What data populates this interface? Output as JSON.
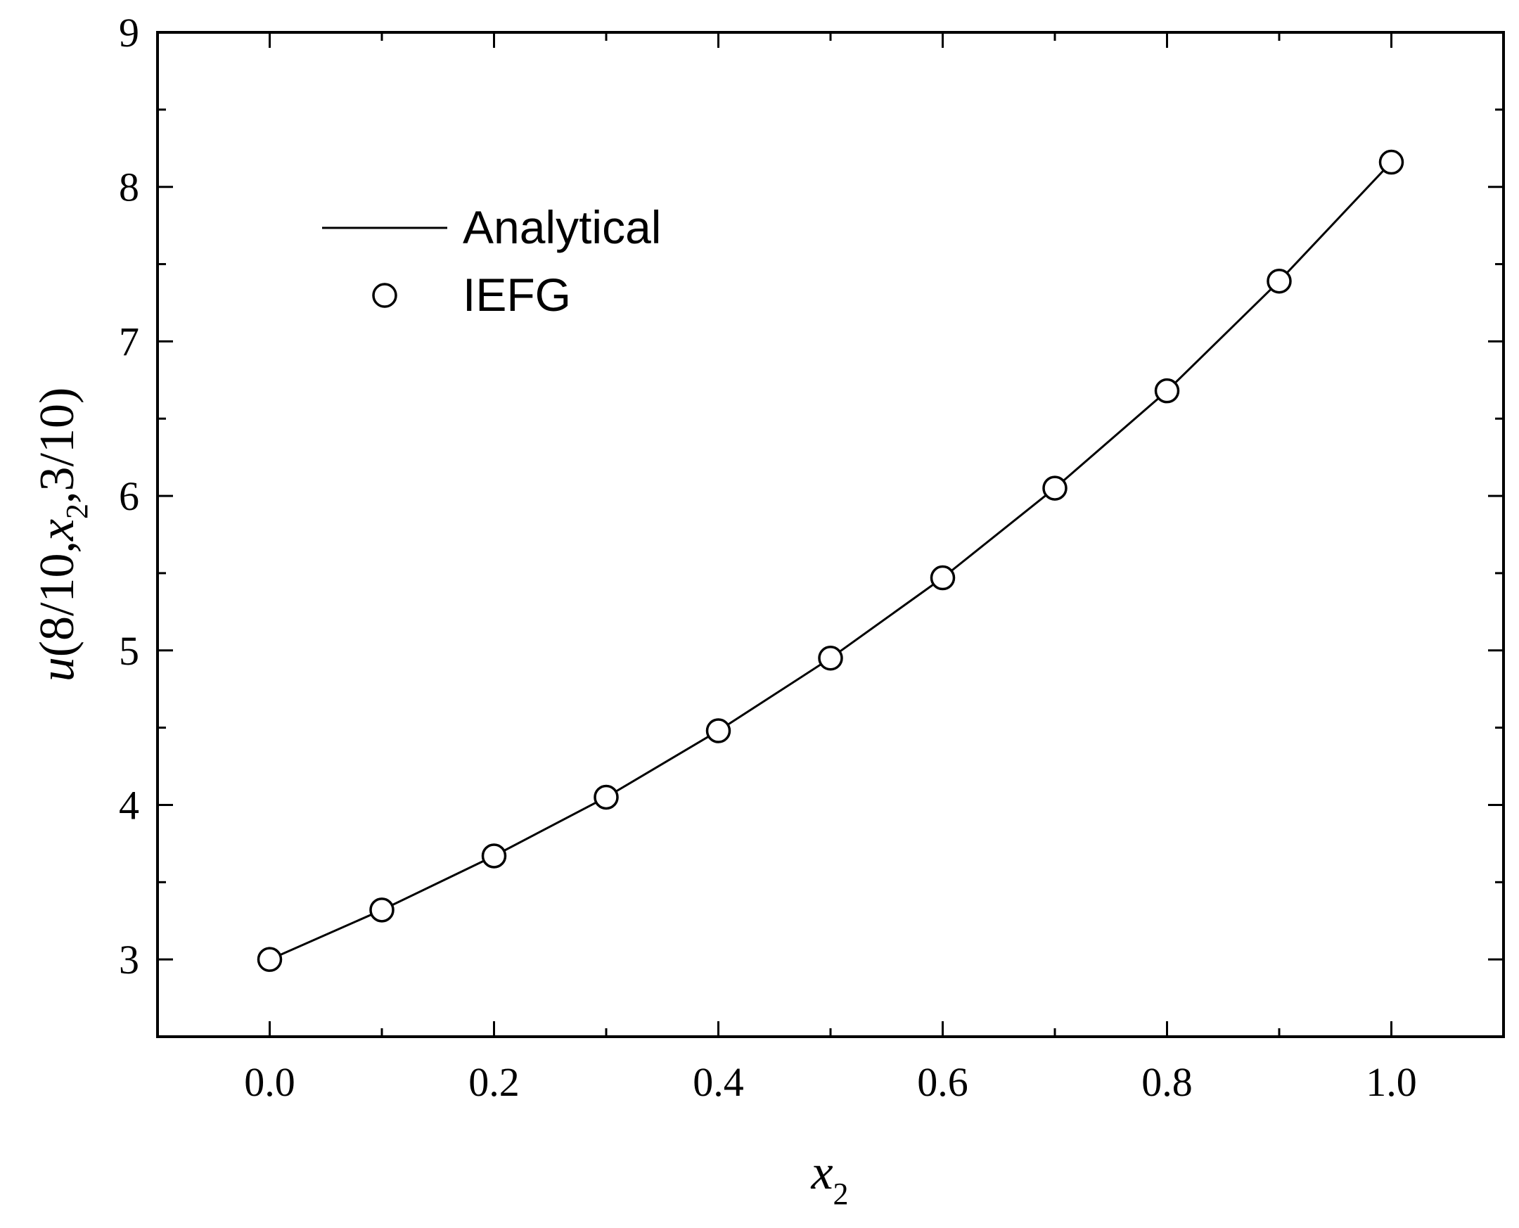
{
  "chart_data": {
    "type": "line",
    "x": [
      0.0,
      0.1,
      0.2,
      0.3,
      0.4,
      0.5,
      0.6,
      0.7,
      0.8,
      0.9,
      1.0
    ],
    "series": [
      {
        "name": "Analytical",
        "style": "line",
        "values": [
          3.0,
          3.32,
          3.67,
          4.05,
          4.48,
          4.95,
          5.47,
          6.05,
          6.68,
          7.39,
          8.16
        ]
      },
      {
        "name": "IEFG",
        "style": "open-circle-markers",
        "values": [
          3.0,
          3.32,
          3.67,
          4.05,
          4.48,
          4.95,
          5.47,
          6.05,
          6.68,
          7.39,
          8.16
        ]
      }
    ],
    "xlim": [
      -0.1,
      1.1
    ],
    "ylim": [
      2.5,
      9.0
    ],
    "xticks": [
      "0.0",
      "0.2",
      "0.4",
      "0.6",
      "0.8",
      "1.0"
    ],
    "yticks": [
      "3",
      "4",
      "5",
      "6",
      "7",
      "8",
      "9"
    ],
    "xlabel": {
      "main": "x",
      "sub": "2"
    },
    "ylabel": {
      "pre": "u",
      "open": "(8/10,",
      "var": "x",
      "sub": "2",
      "close": ",3/10)"
    },
    "legend": {
      "position": "top-left",
      "entries": [
        "Analytical",
        "IEFG"
      ]
    },
    "grid": false
  }
}
